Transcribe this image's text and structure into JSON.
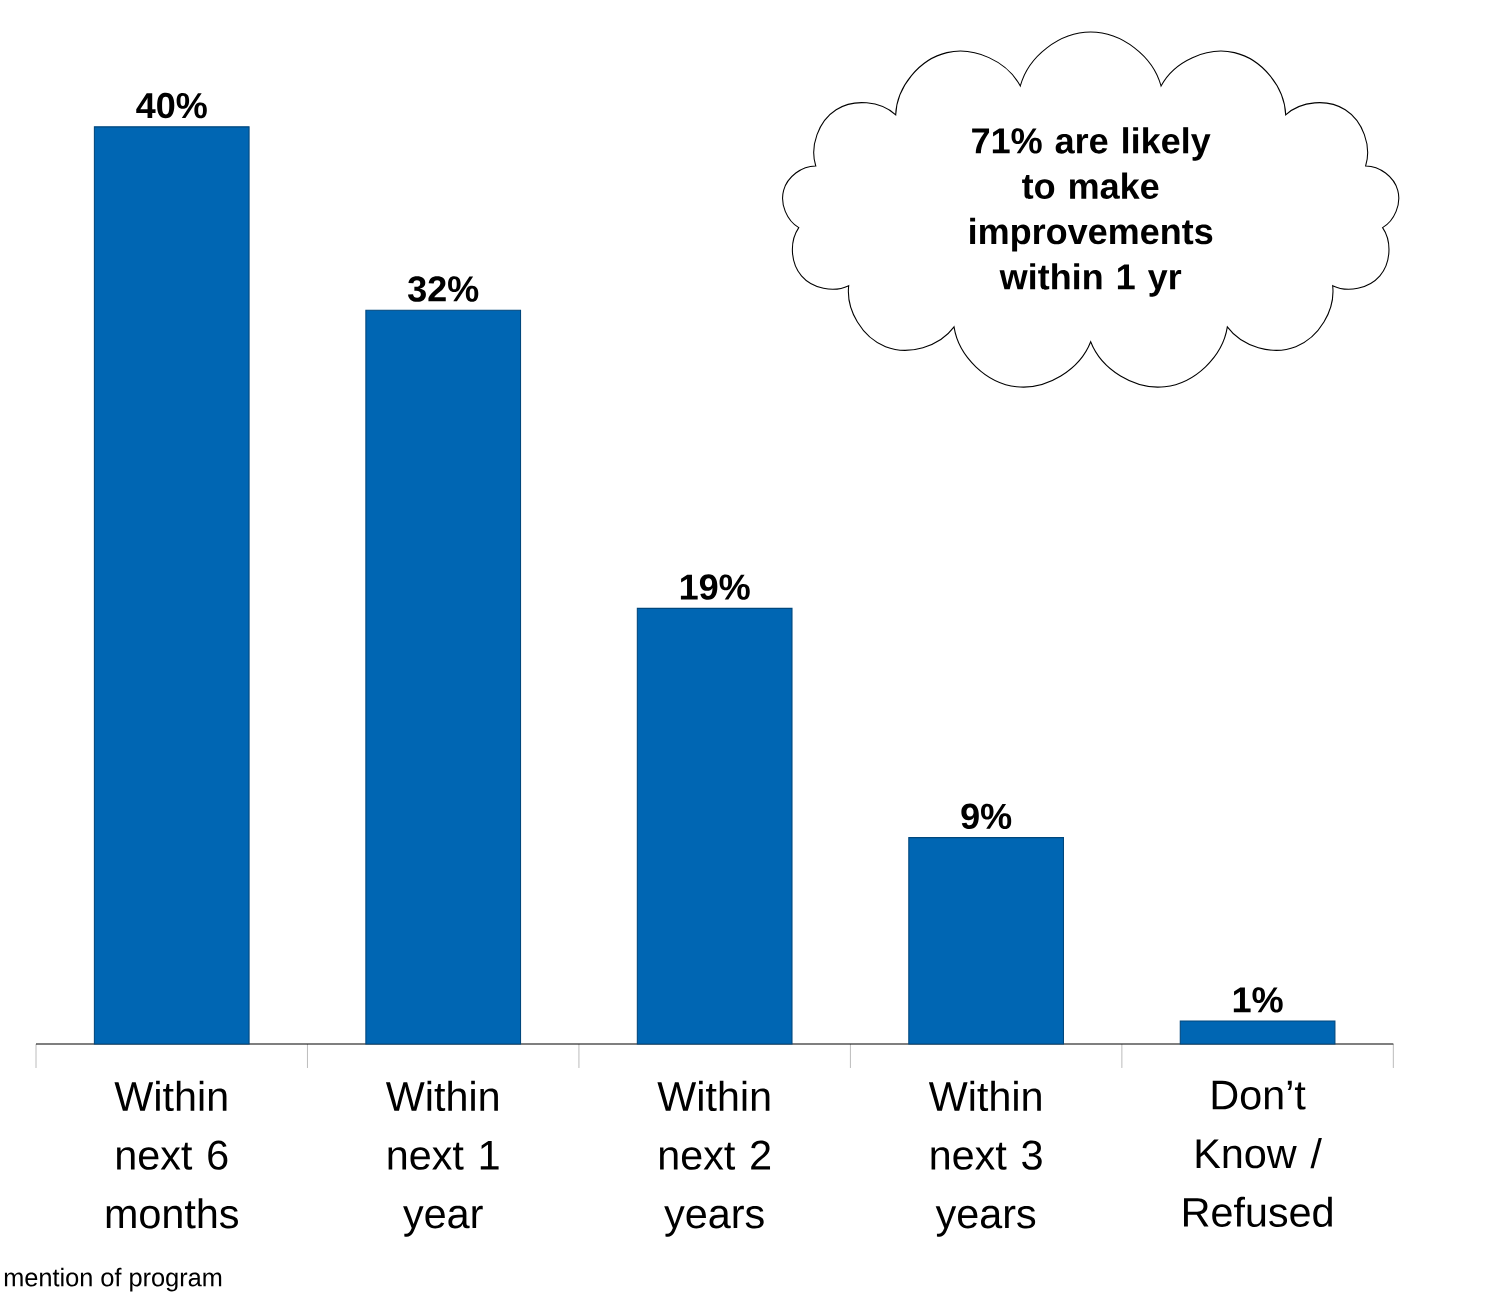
{
  "chart_data": {
    "type": "bar",
    "categories": [
      "Within next 6 months",
      "Within next 1 year",
      "Within next 2 years",
      "Within next 3 years",
      "Don’t Know / Refused"
    ],
    "values": [
      40,
      32,
      19,
      9,
      1
    ],
    "value_labels": [
      "40%",
      "32%",
      "19%",
      "9%",
      "1%"
    ],
    "color": "#0066b3",
    "annotations": [
      "71% are likely to make improvements within 1 yr",
      "mention of program"
    ]
  }
}
